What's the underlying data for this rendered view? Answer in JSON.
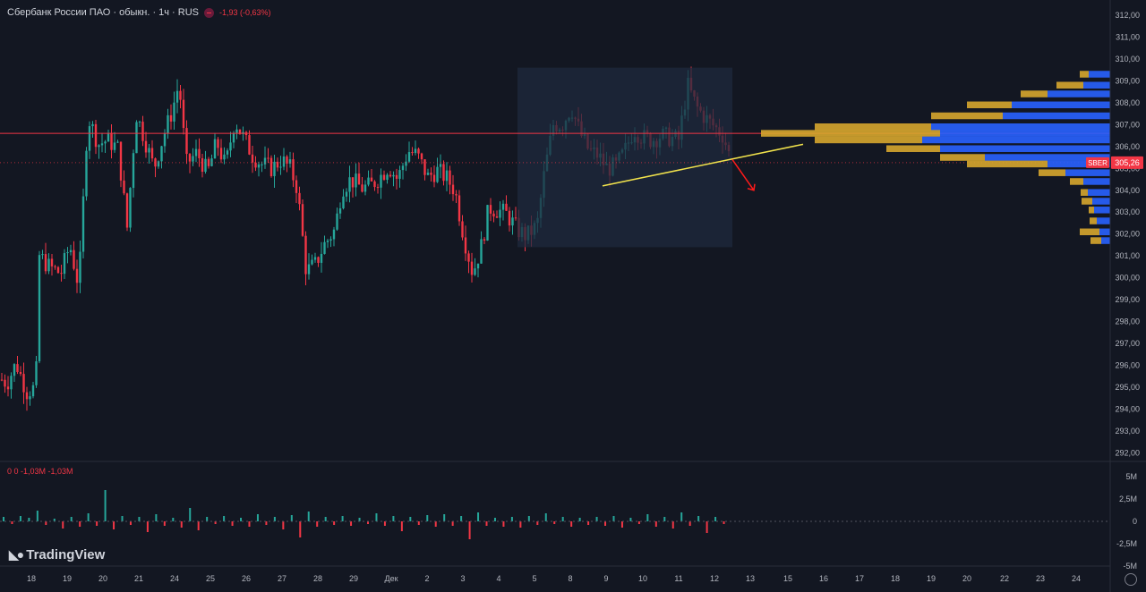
{
  "header": {
    "title": "Сбербанк России ПАО · обыкн. · 1ч · RUS",
    "change": "-1,93 (-0,63%)"
  },
  "volume_legend": "0  0  -1,03M  -1,03M",
  "price_label": {
    "ticker": "SBER",
    "value": "305,26"
  },
  "brand": "TradingView",
  "colors": {
    "up": "#26a69a",
    "down": "#f23645",
    "background": "#131722",
    "trendline": "#f2e34c",
    "level": "#f23645",
    "profile_up": "#2962ff",
    "profile_down": "#d7a62e"
  },
  "chart_data": {
    "type": "candlestick",
    "y_ticks": [
      "312,00",
      "311,00",
      "310,00",
      "309,00",
      "308,00",
      "307,00",
      "306,00",
      "305,00",
      "304,00",
      "303,00",
      "302,00",
      "301,00",
      "300,00",
      "299,00",
      "298,00",
      "297,00",
      "296,00",
      "295,00",
      "294,00",
      "293,00",
      "292,00"
    ],
    "y_range": [
      291.9,
      312.2
    ],
    "x_ticks": [
      "18",
      "19",
      "20",
      "21",
      "24",
      "25",
      "26",
      "27",
      "28",
      "29",
      "Дек",
      "2",
      "3",
      "4",
      "5",
      "8",
      "9",
      "10",
      "11",
      "12",
      "13",
      "15",
      "16",
      "17",
      "18",
      "19",
      "20",
      "22",
      "23",
      "24"
    ],
    "volume_ticks": [
      "5M",
      "2,5M",
      "0",
      "-2,5M",
      "-5M"
    ],
    "volume_range": [
      -5,
      5
    ],
    "path": [
      [
        0,
        295.4
      ],
      [
        8,
        295.2
      ],
      [
        18,
        296.1
      ],
      [
        30,
        294.8
      ],
      [
        40,
        295.0
      ],
      [
        44,
        301.0
      ],
      [
        55,
        300.5
      ],
      [
        68,
        300.2
      ],
      [
        78,
        301.5
      ],
      [
        88,
        299.6
      ],
      [
        98,
        307.4
      ],
      [
        110,
        306.1
      ],
      [
        120,
        306.3
      ],
      [
        132,
        305.9
      ],
      [
        142,
        302.3
      ],
      [
        152,
        307.5
      ],
      [
        162,
        306.3
      ],
      [
        172,
        305.0
      ],
      [
        182,
        306.4
      ],
      [
        192,
        307.6
      ],
      [
        200,
        308.9
      ],
      [
        208,
        305.2
      ],
      [
        220,
        305.7
      ],
      [
        232,
        304.8
      ],
      [
        242,
        306.2
      ],
      [
        252,
        305.1
      ],
      [
        262,
        307.2
      ],
      [
        272,
        306.4
      ],
      [
        282,
        305.6
      ],
      [
        292,
        305.2
      ],
      [
        304,
        305.0
      ],
      [
        314,
        305.4
      ],
      [
        324,
        305.0
      ],
      [
        332,
        304.1
      ],
      [
        342,
        300.3
      ],
      [
        352,
        300.6
      ],
      [
        362,
        301.5
      ],
      [
        374,
        302.2
      ],
      [
        382,
        304.1
      ],
      [
        392,
        304.5
      ],
      [
        404,
        304.1
      ],
      [
        414,
        304.2
      ],
      [
        424,
        304.6
      ],
      [
        434,
        305.1
      ],
      [
        444,
        304.5
      ],
      [
        456,
        305.8
      ],
      [
        466,
        305.6
      ],
      [
        478,
        304.6
      ],
      [
        488,
        304.9
      ],
      [
        498,
        304.6
      ],
      [
        508,
        304.0
      ],
      [
        518,
        301.9
      ],
      [
        528,
        300.2
      ],
      [
        538,
        301.5
      ],
      [
        546,
        303.2
      ],
      [
        556,
        303.1
      ],
      [
        566,
        302.9
      ],
      [
        578,
        302.2
      ],
      [
        588,
        301.9
      ],
      [
        600,
        302.4
      ],
      [
        608,
        304.8
      ],
      [
        618,
        307.0
      ],
      [
        628,
        307.0
      ],
      [
        638,
        307.8
      ],
      [
        648,
        306.6
      ],
      [
        658,
        305.8
      ],
      [
        668,
        305.6
      ],
      [
        678,
        305.0
      ],
      [
        688,
        305.1
      ],
      [
        698,
        305.8
      ],
      [
        708,
        306.8
      ],
      [
        718,
        306.4
      ],
      [
        728,
        306.3
      ],
      [
        738,
        306.5
      ],
      [
        748,
        306.4
      ],
      [
        758,
        306.3
      ],
      [
        768,
        308.8
      ],
      [
        778,
        307.8
      ],
      [
        788,
        307.3
      ],
      [
        798,
        306.9
      ],
      [
        808,
        306.5
      ],
      [
        817,
        305.26
      ]
    ],
    "volume": [
      0.5,
      -0.3,
      0.6,
      0.4,
      1.2,
      -0.4,
      0.3,
      -0.8,
      0.5,
      -0.6,
      0.9,
      -0.5,
      3.5,
      -0.9,
      0.6,
      -0.4,
      0.5,
      -1.2,
      0.8,
      -0.5,
      0.4,
      -0.7,
      1.5,
      -1.0,
      0.5,
      -0.3,
      0.6,
      -0.5,
      0.4,
      -0.6,
      0.8,
      -0.4,
      0.5,
      -0.9,
      0.7,
      -1.8,
      1.1,
      -0.6,
      0.5,
      -0.4,
      0.6,
      -0.5,
      0.4,
      -0.3,
      0.9,
      -0.5,
      0.6,
      -1.1,
      0.5,
      -0.4,
      0.7,
      -0.6,
      0.8,
      -0.5,
      0.6,
      -2.0,
      1.0,
      -0.5,
      0.4,
      -0.6,
      0.5,
      -0.7,
      0.6,
      -0.4,
      0.9,
      -0.3,
      0.5,
      -0.6,
      0.4,
      -0.4,
      0.5,
      -0.5,
      0.6,
      -0.7,
      0.4,
      -0.3,
      0.8,
      -0.6,
      0.5,
      -0.8,
      1.0,
      -0.5,
      0.6,
      -1.3,
      0.5,
      -0.3
    ],
    "resistance_level": 306.6,
    "last_price": 305.26,
    "trendline": [
      [
        673,
        304.2
      ],
      [
        897,
        306.1
      ]
    ],
    "highlight_box": {
      "x": [
        578,
        818
      ],
      "price": [
        301.4,
        309.6
      ]
    },
    "arrow": [
      [
        818,
        305.4
      ],
      [
        842,
        304.0
      ]
    ],
    "volume_profile": [
      {
        "price": 309.3,
        "up": 24,
        "down": 10
      },
      {
        "price": 308.8,
        "up": 30,
        "down": 30
      },
      {
        "price": 308.4,
        "up": 70,
        "down": 30
      },
      {
        "price": 307.9,
        "up": 110,
        "down": 50
      },
      {
        "price": 307.4,
        "up": 120,
        "down": 80
      },
      {
        "price": 306.9,
        "up": 200,
        "down": 130
      },
      {
        "price": 306.6,
        "up": 190,
        "down": 200
      },
      {
        "price": 306.3,
        "up": 210,
        "down": 120
      },
      {
        "price": 305.9,
        "up": 190,
        "down": 60
      },
      {
        "price": 305.5,
        "up": 140,
        "down": 50
      },
      {
        "price": 305.2,
        "up": 70,
        "down": 90
      },
      {
        "price": 304.8,
        "up": 50,
        "down": 30
      },
      {
        "price": 304.4,
        "up": 30,
        "down": 15
      },
      {
        "price": 303.9,
        "up": 25,
        "down": 8
      },
      {
        "price": 303.5,
        "up": 20,
        "down": 12
      },
      {
        "price": 303.1,
        "up": 18,
        "down": 6
      },
      {
        "price": 302.6,
        "up": 15,
        "down": 8
      },
      {
        "price": 302.1,
        "up": 12,
        "down": 22
      },
      {
        "price": 301.7,
        "up": 10,
        "down": 12
      }
    ]
  }
}
